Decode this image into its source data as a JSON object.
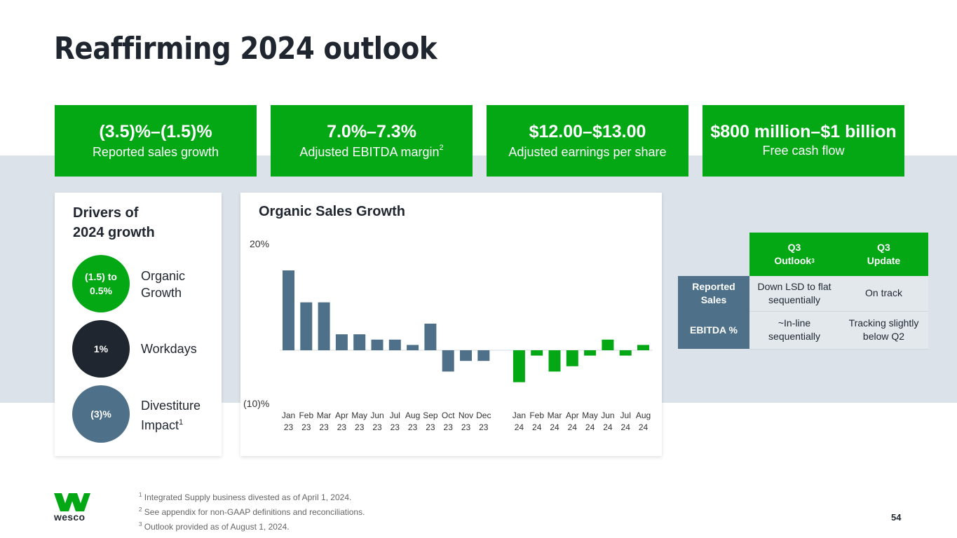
{
  "page": {
    "title": "Reaffirming 2024 outlook",
    "page_number": "54",
    "brand": "wesco"
  },
  "colors": {
    "green": "#03a814",
    "slate": "#4e7189",
    "dark": "#1f2630",
    "band": "#dce2e9"
  },
  "kpis": [
    {
      "value": "(3.5)%–(1.5)%",
      "label": "Reported sales growth",
      "sup": ""
    },
    {
      "value": "7.0%–7.3%",
      "label": "Adjusted EBITDA margin",
      "sup": "2"
    },
    {
      "value": "$12.00–$13.00",
      "label": "Adjusted earnings per share",
      "sup": ""
    },
    {
      "value": "$800 million–$1 billion",
      "label": "Free cash flow",
      "sup": ""
    }
  ],
  "drivers": {
    "title_line1": "Drivers of",
    "title_line2": "2024 growth",
    "items": [
      {
        "value_line1": "(1.5) to",
        "value_line2": "0.5%",
        "label_line1": "Organic",
        "label_line2": "Growth",
        "sup": ""
      },
      {
        "value_line1": "1%",
        "value_line2": "",
        "label_line1": "Workdays",
        "label_line2": "",
        "sup": ""
      },
      {
        "value_line1": "(3)%",
        "value_line2": "",
        "label_line1": "Divestiture",
        "label_line2": "Impact",
        "sup": "1"
      }
    ]
  },
  "chart_data": {
    "type": "bar",
    "title": "Organic Sales Growth",
    "xlabel": "",
    "ylabel": "",
    "ylim": [
      -10,
      20
    ],
    "ytick_labels": [
      "20%",
      "(10)%"
    ],
    "grid": false,
    "categories": [
      {
        "month": "Jan",
        "year": "23"
      },
      {
        "month": "Feb",
        "year": "23"
      },
      {
        "month": "Mar",
        "year": "23"
      },
      {
        "month": "Apr",
        "year": "23"
      },
      {
        "month": "May",
        "year": "23"
      },
      {
        "month": "Jun",
        "year": "23"
      },
      {
        "month": "Jul",
        "year": "23"
      },
      {
        "month": "Aug",
        "year": "23"
      },
      {
        "month": "Sep",
        "year": "23"
      },
      {
        "month": "Oct",
        "year": "23"
      },
      {
        "month": "Nov",
        "year": "23"
      },
      {
        "month": "Dec",
        "year": "23"
      },
      {
        "month": "Jan",
        "year": "24"
      },
      {
        "month": "Feb",
        "year": "24"
      },
      {
        "month": "Mar",
        "year": "24"
      },
      {
        "month": "Apr",
        "year": "24"
      },
      {
        "month": "May",
        "year": "24"
      },
      {
        "month": "Jun",
        "year": "24"
      },
      {
        "month": "Jul",
        "year": "24"
      },
      {
        "month": "Aug",
        "year": "24"
      }
    ],
    "series": [
      {
        "name": "2023",
        "color": "#4e7189",
        "values": [
          15,
          9,
          9,
          3,
          3,
          2,
          2,
          1,
          5,
          -4,
          -2,
          -2
        ]
      },
      {
        "name": "2024",
        "color": "#03a814",
        "values": [
          -6,
          -1,
          -4,
          -3,
          -1,
          2,
          -1,
          1
        ]
      }
    ]
  },
  "outlook_table": {
    "headers": [
      {
        "line1": "Q3",
        "line2": "Outlook",
        "sup": "3"
      },
      {
        "line1": "Q3",
        "line2": "Update",
        "sup": ""
      }
    ],
    "rows": [
      {
        "label_line1": "Reported",
        "label_line2": "Sales",
        "cells": [
          {
            "line1": "Down LSD to flat",
            "line2": "sequentially"
          },
          {
            "line1": "On track",
            "line2": ""
          }
        ]
      },
      {
        "label_line1": "EBITDA %",
        "label_line2": "",
        "cells": [
          {
            "line1": "~In-line",
            "line2": "sequentially"
          },
          {
            "line1": "Tracking slightly",
            "line2": "below Q2"
          }
        ]
      }
    ]
  },
  "footnotes": [
    {
      "sup": "1",
      "text": "Integrated Supply business divested as of April 1, 2024."
    },
    {
      "sup": "2",
      "text": "See appendix for non-GAAP definitions and reconciliations."
    },
    {
      "sup": "3",
      "text": "Outlook provided as of August 1, 2024."
    }
  ]
}
